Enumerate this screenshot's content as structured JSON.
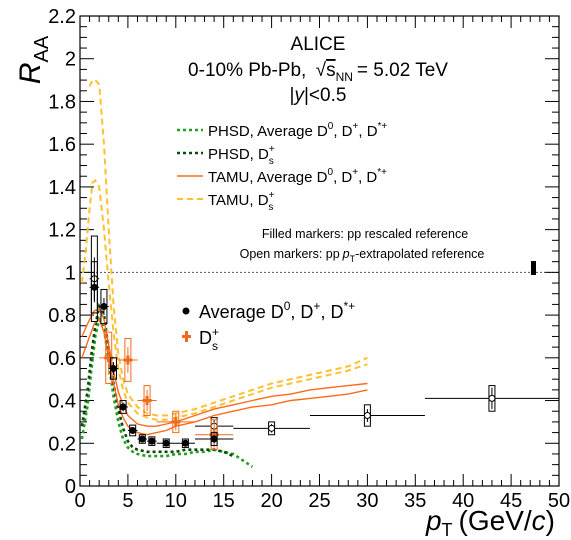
{
  "chart_data": {
    "type": "scatter",
    "xlabel_main": "p",
    "xlabel_sub": "T",
    "xlabel_units": "(GeV/",
    "xlabel_c": "c",
    "xlabel_close": ")",
    "ylabel_main": "R",
    "ylabel_sub": "AA",
    "xlim": [
      0,
      50
    ],
    "ylim": [
      0,
      2.2
    ],
    "x_ticks": [
      0,
      5,
      10,
      15,
      20,
      25,
      30,
      35,
      40,
      45,
      50
    ],
    "y_ticks": [
      0,
      0.2,
      0.4,
      0.6,
      0.8,
      1,
      1.2,
      1.4,
      1.6,
      1.8,
      2,
      2.2
    ],
    "x_tick_labels": [
      "0",
      "5",
      "10",
      "15",
      "20",
      "25",
      "30",
      "35",
      "40",
      "45",
      "50"
    ],
    "y_tick_labels": [
      "0",
      "0.2",
      "0.4",
      "0.6",
      "0.8",
      "1",
      "1.2",
      "1.4",
      "1.6",
      "1.8",
      "2",
      "2.2"
    ],
    "reference_line": 1,
    "experiment": "ALICE",
    "system_line": "0-10% Pb-Pb,",
    "energy_label": "s",
    "energy_sub": "NN",
    "energy_value": "= 5.02 TeV",
    "rapidity_y": "y",
    "rapidity_value": "<0.5",
    "note_filled": "Filled markers: pp rescaled reference",
    "note_open_a": "Open markers: pp",
    "note_open_p": "p",
    "note_open_sub": "T",
    "note_open_b": "-extrapolated reference",
    "legend_models": [
      {
        "name": "PHSD, Average D",
        "sup1": "0",
        "rest": ", D",
        "sup2": "+",
        "rest2": ", D",
        "sup3": "*+",
        "color": "#22a022",
        "dash": "3,3",
        "width": 2.6
      },
      {
        "name": "PHSD, D",
        "sup1": "+",
        "sub1": "s",
        "color": "#0a4a0a",
        "dash": "3,3",
        "width": 2.6
      },
      {
        "name": "TAMU, Average D",
        "sup1": "0",
        "rest": ", D",
        "sup2": "+",
        "rest2": ", D",
        "sup3": "*+",
        "color": "#ff6a1a",
        "dash": "",
        "width": 1.6
      },
      {
        "name": "TAMU, D",
        "sup1": "+",
        "sub1": "s",
        "color": "#ffc030",
        "dash": "6,4",
        "width": 2
      }
    ],
    "legend_data": [
      {
        "name": "Average D",
        "sup1": "0",
        "rest": ", D",
        "sup2": "+",
        "rest2": ", D",
        "sup3": "*+"
      },
      {
        "name": "D",
        "sup1": "+",
        "sub1": "s"
      }
    ],
    "series": [
      {
        "name": "Average D0, D+, D*+",
        "color": "#000000",
        "filled": [
          {
            "x": 1.5,
            "y": 0.93,
            "xerr": 0.5,
            "yerr": 0.07,
            "sys": 0.12
          },
          {
            "x": 2.5,
            "y": 0.84,
            "xerr": 0.5,
            "yerr": 0.04,
            "sys": 0.08
          },
          {
            "x": 3.5,
            "y": 0.55,
            "xerr": 0.5,
            "yerr": 0.03,
            "sys": 0.05
          },
          {
            "x": 4.5,
            "y": 0.37,
            "xerr": 0.5,
            "yerr": 0.02,
            "sys": 0.03
          },
          {
            "x": 5.5,
            "y": 0.26,
            "xerr": 0.5,
            "yerr": 0.015,
            "sys": 0.025
          },
          {
            "x": 6.5,
            "y": 0.22,
            "xerr": 0.5,
            "yerr": 0.01,
            "sys": 0.02
          },
          {
            "x": 7.5,
            "y": 0.21,
            "xerr": 0.5,
            "yerr": 0.01,
            "sys": 0.02
          },
          {
            "x": 9.0,
            "y": 0.2,
            "xerr": 1.0,
            "yerr": 0.01,
            "sys": 0.02
          },
          {
            "x": 11.0,
            "y": 0.2,
            "xerr": 1.0,
            "yerr": 0.01,
            "sys": 0.02
          },
          {
            "x": 14.0,
            "y": 0.22,
            "xerr": 2.0,
            "yerr": 0.02,
            "sys": 0.03
          }
        ],
        "open": [
          {
            "x": 1.5,
            "y": 0.97,
            "xerr": 0.5,
            "yerr": 0.1,
            "sys": 0.2
          },
          {
            "x": 14.0,
            "y": 0.28,
            "xerr": 2.0,
            "yerr": 0.03,
            "sys": 0.04
          },
          {
            "x": 20.0,
            "y": 0.27,
            "xerr": 4.0,
            "yerr": 0.02,
            "sys": 0.03
          },
          {
            "x": 30.0,
            "y": 0.33,
            "xerr": 6.0,
            "yerr": 0.03,
            "sys": 0.05
          },
          {
            "x": 43.0,
            "y": 0.41,
            "xerr": 7.0,
            "yerr": 0.05,
            "sys": 0.06
          }
        ]
      },
      {
        "name": "Ds+",
        "color": "#f06a1e",
        "filled": [
          {
            "x": 3.0,
            "y": 0.6,
            "xerr": 1.0,
            "yerr": 0.08,
            "sys": 0.12
          },
          {
            "x": 5.0,
            "y": 0.59,
            "xerr": 1.0,
            "yerr": 0.06,
            "sys": 0.1
          },
          {
            "x": 7.0,
            "y": 0.4,
            "xerr": 1.0,
            "yerr": 0.05,
            "sys": 0.07
          },
          {
            "x": 10.0,
            "y": 0.3,
            "xerr": 2.0,
            "yerr": 0.04,
            "sys": 0.05
          },
          {
            "x": 14.0,
            "y": 0.24,
            "xerr": 2.0,
            "yerr": 0.06,
            "sys": 0.07
          }
        ]
      }
    ],
    "models": [
      {
        "name": "PHSD, Average D0, D+, D*+",
        "x": [
          0.2,
          0.8,
          1.2,
          1.6,
          2.0,
          2.5,
          3.0,
          3.5,
          4.0,
          4.5,
          5.0,
          5.5,
          6.0,
          7.0,
          8.0,
          9.0,
          10.0,
          11.0,
          12.0,
          13.0,
          14.0,
          15.0,
          16.0,
          17.0,
          18.0
        ],
        "y": [
          0.22,
          0.38,
          0.55,
          0.7,
          0.78,
          0.74,
          0.58,
          0.42,
          0.3,
          0.22,
          0.18,
          0.16,
          0.15,
          0.14,
          0.14,
          0.14,
          0.15,
          0.15,
          0.16,
          0.16,
          0.17,
          0.16,
          0.15,
          0.12,
          0.09
        ]
      },
      {
        "name": "PHSD, Ds+",
        "x": [
          0.2,
          0.8,
          1.2,
          1.6,
          2.0,
          2.5,
          3.0,
          3.5,
          4.0,
          4.5,
          5.0,
          5.5,
          6.0,
          7.0,
          8.0,
          9.0,
          10.0,
          11.0,
          12.0,
          13.0,
          14.0,
          15.0,
          16.0
        ],
        "y": [
          0.28,
          0.45,
          0.62,
          0.75,
          0.84,
          0.8,
          0.64,
          0.48,
          0.36,
          0.27,
          0.21,
          0.18,
          0.17,
          0.16,
          0.16,
          0.16,
          0.16,
          0.17,
          0.17,
          0.17,
          0.17,
          0.16,
          0.14
        ]
      },
      {
        "name": "TAMU, Average D0, D+, D*+ (upper)",
        "x": [
          0.2,
          1.0,
          1.5,
          2.0,
          2.5,
          3.0,
          3.5,
          4.0,
          4.5,
          5.0,
          6.0,
          7.0,
          8.0,
          9.0,
          10.0,
          12.0,
          14.0,
          16.0,
          18.0,
          20.0,
          22.0,
          24.0,
          26.0,
          28.0,
          30.0
        ],
        "y": [
          0.7,
          0.78,
          0.82,
          0.83,
          0.78,
          0.66,
          0.54,
          0.44,
          0.38,
          0.33,
          0.29,
          0.28,
          0.28,
          0.29,
          0.3,
          0.33,
          0.36,
          0.38,
          0.4,
          0.42,
          0.43,
          0.45,
          0.46,
          0.47,
          0.48
        ]
      },
      {
        "name": "TAMU, Average D0, D+, D*+ (lower)",
        "x": [
          0.2,
          1.0,
          1.5,
          2.0,
          2.5,
          3.0,
          3.5,
          4.0,
          4.5,
          5.0,
          6.0,
          7.0,
          8.0,
          9.0,
          10.0,
          12.0,
          14.0,
          16.0,
          18.0,
          20.0,
          22.0,
          24.0,
          26.0,
          28.0,
          30.0
        ],
        "y": [
          0.6,
          0.7,
          0.76,
          0.78,
          0.72,
          0.6,
          0.48,
          0.38,
          0.32,
          0.28,
          0.25,
          0.24,
          0.25,
          0.26,
          0.28,
          0.3,
          0.33,
          0.35,
          0.37,
          0.38,
          0.4,
          0.41,
          0.42,
          0.43,
          0.45
        ]
      },
      {
        "name": "TAMU, Ds+ (upper)",
        "x": [
          1.0,
          1.3,
          1.6,
          2.0,
          2.5,
          3.0,
          3.5,
          4.0,
          4.5,
          5.0,
          6.0,
          7.0,
          8.0,
          9.0,
          10.0,
          12.0,
          14.0,
          16.0,
          18.0,
          20.0,
          22.0,
          24.0,
          26.0,
          28.0,
          30.0
        ],
        "y": [
          1.87,
          1.9,
          1.9,
          1.88,
          1.6,
          1.2,
          0.85,
          0.62,
          0.5,
          0.43,
          0.37,
          0.34,
          0.33,
          0.33,
          0.34,
          0.36,
          0.39,
          0.42,
          0.45,
          0.48,
          0.5,
          0.52,
          0.54,
          0.56,
          0.6
        ]
      },
      {
        "name": "TAMU, Ds+ (lower)",
        "x": [
          0.2,
          0.6,
          1.0,
          1.3,
          1.6,
          2.0,
          2.5,
          3.0,
          3.5,
          4.0,
          4.5,
          5.0,
          6.0,
          7.0,
          8.0,
          9.0,
          10.0,
          12.0,
          14.0,
          16.0,
          18.0,
          20.0,
          22.0,
          24.0,
          26.0,
          28.0,
          30.0
        ],
        "y": [
          0.95,
          1.1,
          1.3,
          1.42,
          1.43,
          1.4,
          1.2,
          0.95,
          0.72,
          0.55,
          0.45,
          0.39,
          0.34,
          0.32,
          0.31,
          0.31,
          0.32,
          0.34,
          0.37,
          0.4,
          0.43,
          0.46,
          0.48,
          0.5,
          0.52,
          0.54,
          0.57
        ]
      }
    ]
  }
}
